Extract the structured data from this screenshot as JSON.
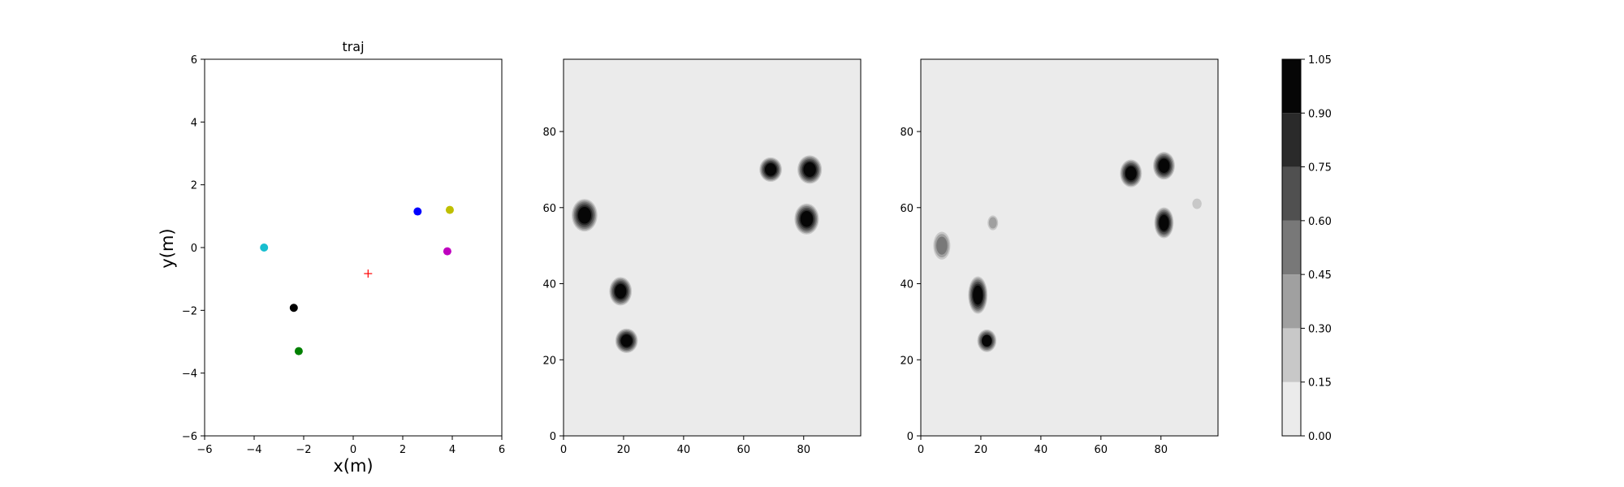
{
  "chart_data": [
    {
      "type": "scatter",
      "title": "traj",
      "xlabel": "x(m)",
      "ylabel": "y(m)",
      "xlim": [
        -6,
        6
      ],
      "ylim": [
        -6,
        6
      ],
      "xticks": [
        -6,
        -4,
        -2,
        0,
        2,
        4,
        6
      ],
      "yticks": [
        -6,
        -4,
        -2,
        0,
        2,
        4,
        6
      ],
      "xtick_labels": [
        "−6",
        "−4",
        "−2",
        "0",
        "2",
        "4",
        "6"
      ],
      "ytick_labels": [
        "−6",
        "−4",
        "−2",
        "0",
        "2",
        "4",
        "6"
      ],
      "grid": false,
      "points": [
        {
          "x": -3.6,
          "y": 0.0,
          "color": "#17becf",
          "marker": "circle"
        },
        {
          "x": -2.4,
          "y": -1.92,
          "color": "#000000",
          "marker": "circle"
        },
        {
          "x": -2.2,
          "y": -3.3,
          "color": "#008000",
          "marker": "circle"
        },
        {
          "x": 2.6,
          "y": 1.15,
          "color": "#0000ff",
          "marker": "circle"
        },
        {
          "x": 3.9,
          "y": 1.2,
          "color": "#bfbf00",
          "marker": "circle"
        },
        {
          "x": 3.8,
          "y": -0.12,
          "color": "#bf00bf",
          "marker": "circle"
        },
        {
          "x": 0.6,
          "y": -0.83,
          "color": "#ff0000",
          "marker": "plus"
        }
      ]
    },
    {
      "type": "heatmap",
      "xlim": [
        0,
        99
      ],
      "ylim": [
        0,
        99
      ],
      "xticks": [
        0,
        20,
        40,
        60,
        80
      ],
      "yticks": [
        0,
        20,
        40,
        60,
        80
      ],
      "xtick_labels": [
        "0",
        "20",
        "40",
        "60",
        "80"
      ],
      "ytick_labels": [
        "0",
        "20",
        "40",
        "60",
        "80"
      ],
      "background_level": 0.0,
      "blobs": [
        {
          "x": 7,
          "y": 58,
          "rx": 4,
          "ry": 4,
          "value": 1.0
        },
        {
          "x": 19,
          "y": 38,
          "rx": 3.5,
          "ry": 3.5,
          "value": 1.0
        },
        {
          "x": 21,
          "y": 25,
          "rx": 3.5,
          "ry": 3,
          "value": 1.0
        },
        {
          "x": 69,
          "y": 70,
          "rx": 3.5,
          "ry": 3,
          "value": 1.0
        },
        {
          "x": 82,
          "y": 70,
          "rx": 3.8,
          "ry": 3.5,
          "value": 1.0
        },
        {
          "x": 81,
          "y": 57,
          "rx": 3.8,
          "ry": 3.8,
          "value": 1.0
        }
      ]
    },
    {
      "type": "heatmap",
      "xlim": [
        0,
        99
      ],
      "ylim": [
        0,
        99
      ],
      "xticks": [
        0,
        20,
        40,
        60,
        80
      ],
      "yticks": [
        0,
        20,
        40,
        60,
        80
      ],
      "xtick_labels": [
        "0",
        "20",
        "40",
        "60",
        "80"
      ],
      "ytick_labels": [
        "0",
        "20",
        "40",
        "60",
        "80"
      ],
      "background_level": 0.0,
      "blobs": [
        {
          "x": 7,
          "y": 50,
          "rx": 2.8,
          "ry": 3.6,
          "value": 0.55
        },
        {
          "x": 19,
          "y": 37,
          "rx": 3.0,
          "ry": 4.6,
          "value": 1.0
        },
        {
          "x": 22,
          "y": 25,
          "rx": 3.0,
          "ry": 2.8,
          "value": 0.9
        },
        {
          "x": 24,
          "y": 56,
          "rx": 1.8,
          "ry": 2.0,
          "value": 0.4
        },
        {
          "x": 70,
          "y": 69,
          "rx": 3.4,
          "ry": 3.4,
          "value": 1.0
        },
        {
          "x": 81,
          "y": 71,
          "rx": 3.4,
          "ry": 3.4,
          "value": 1.0
        },
        {
          "x": 81,
          "y": 56,
          "rx": 3.0,
          "ry": 3.8,
          "value": 1.0
        },
        {
          "x": 92,
          "y": 61,
          "rx": 1.8,
          "ry": 1.6,
          "value": 0.22
        }
      ]
    },
    {
      "type": "colorbar",
      "boundaries": [
        0.0,
        0.15,
        0.3,
        0.45,
        0.6,
        0.75,
        0.9,
        1.05
      ],
      "tick_labels": [
        "0.00",
        "0.15",
        "0.30",
        "0.45",
        "0.60",
        "0.75",
        "0.90",
        "1.05"
      ],
      "colors": [
        "#ebebeb",
        "#c8c8c8",
        "#a0a0a0",
        "#787878",
        "#505050",
        "#2a2a2a",
        "#060606"
      ]
    }
  ]
}
